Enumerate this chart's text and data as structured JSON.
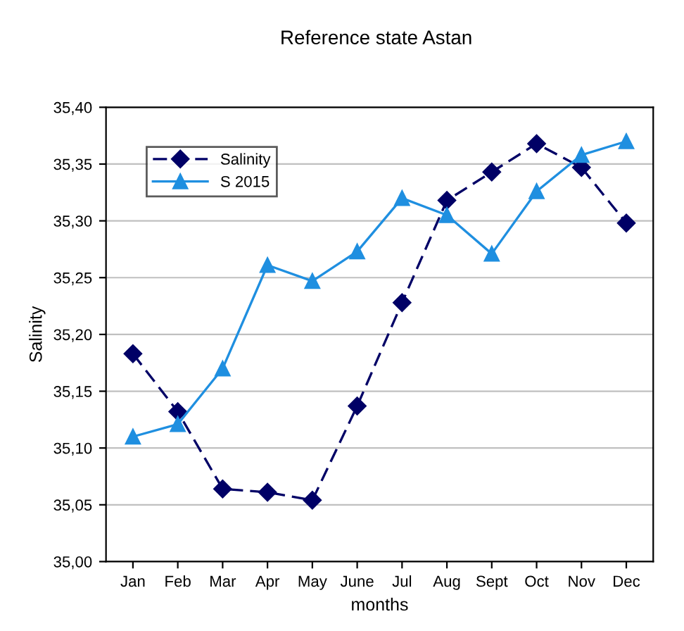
{
  "chart_data": {
    "type": "line",
    "title": "Reference state Astan",
    "xlabel": "months",
    "ylabel": "Salinity",
    "categories": [
      "Jan",
      "Feb",
      "Mar",
      "Apr",
      "May",
      "June",
      "Jul",
      "Aug",
      "Sept",
      "Oct",
      "Nov",
      "Dec"
    ],
    "series": [
      {
        "name": "Salinity",
        "color": "#000066",
        "marker": "diamond",
        "line_style": "dashed",
        "values": [
          35.183,
          35.132,
          35.064,
          35.061,
          35.054,
          35.137,
          35.228,
          35.318,
          35.343,
          35.368,
          35.347,
          35.298
        ]
      },
      {
        "name": "S 2015",
        "color": "#1f8fe0",
        "marker": "triangle",
        "line_style": "solid",
        "values": [
          35.11,
          35.121,
          35.17,
          35.261,
          35.247,
          35.273,
          35.32,
          35.305,
          35.271,
          35.326,
          35.358,
          35.37
        ]
      }
    ],
    "ylim": [
      35.0,
      35.4
    ],
    "yticks": [
      {
        "value": 35.0,
        "label": "35,00"
      },
      {
        "value": 35.05,
        "label": "35,05"
      },
      {
        "value": 35.1,
        "label": "35,10"
      },
      {
        "value": 35.15,
        "label": "35,15"
      },
      {
        "value": 35.2,
        "label": "35,20"
      },
      {
        "value": 35.25,
        "label": "35,25"
      },
      {
        "value": 35.3,
        "label": "35,30"
      },
      {
        "value": 35.35,
        "label": "35,35"
      },
      {
        "value": 35.4,
        "label": "35,40"
      }
    ],
    "grid": "y",
    "legend": "top left"
  }
}
